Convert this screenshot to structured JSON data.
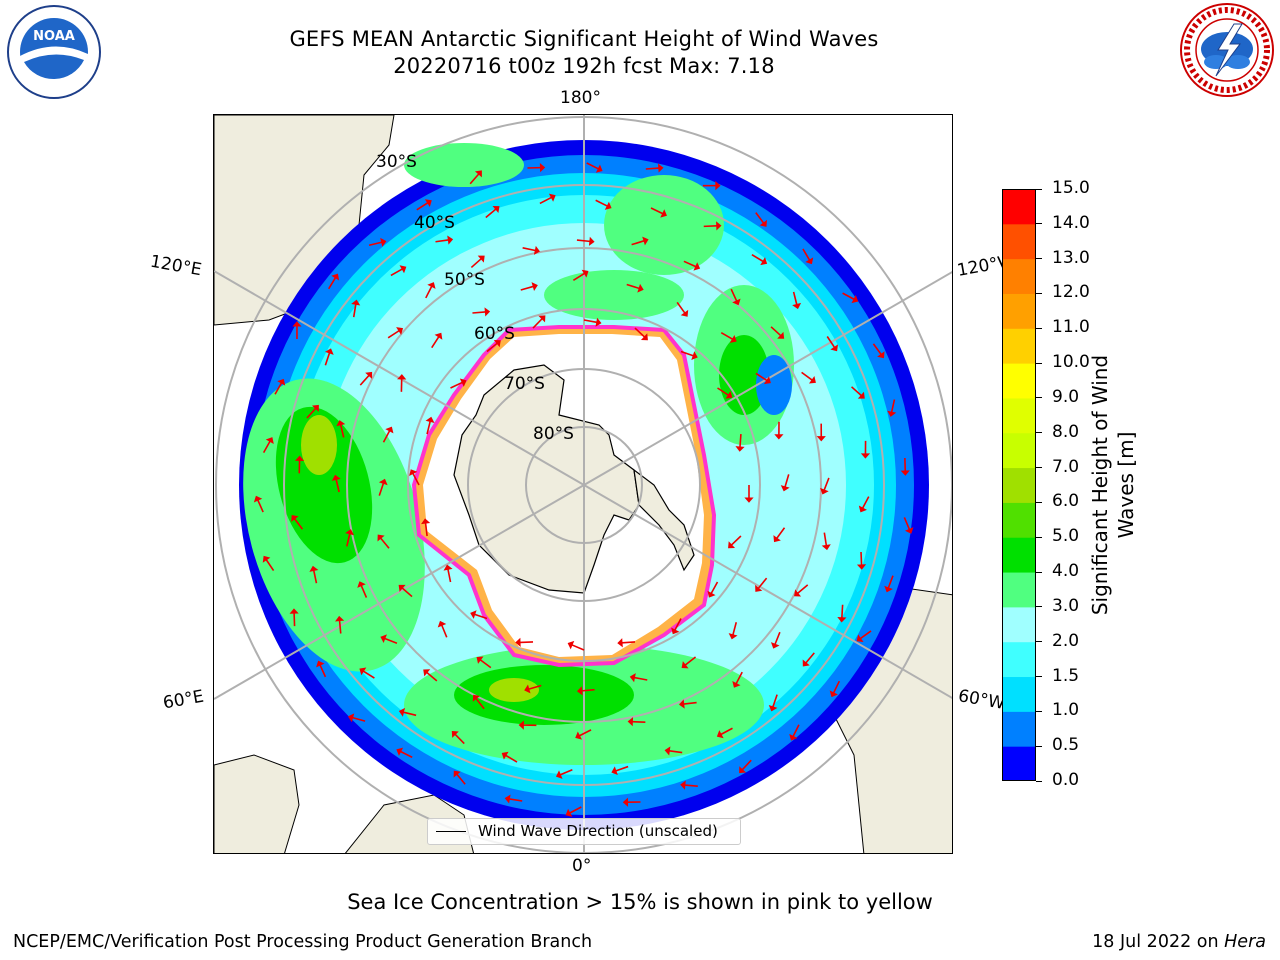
{
  "title": {
    "line1": "GEFS MEAN Antarctic Significant Height of Wind Waves",
    "line2": "20220716 t00z 192h fcst   Max: 7.18"
  },
  "subtitle": "Sea Ice Concentration > 15% is shown in pink to yellow",
  "footer": {
    "left": "NCEP/EMC/Verification Post Processing Product Generation Branch",
    "right_date": "18 Jul 2022 on ",
    "right_machine": "Hera"
  },
  "logos": {
    "noaa": "NOAA",
    "nws": "NATIONAL WEATHER SERVICE"
  },
  "map": {
    "projection": "south-polar-stereographic",
    "longitude_labels": {
      "top": "180°",
      "bottom": "0°",
      "left_upper": "120°E",
      "left_lower": "60°E",
      "right_upper": "120°W",
      "right_lower": "60°W"
    },
    "latitude_labels": [
      "30°S",
      "40°S",
      "50°S",
      "60°S",
      "70°S",
      "80°S"
    ],
    "legend": "Wind Wave Direction (unscaled)",
    "colors": {
      "land": "#efedde",
      "ice_edge": "#ff33cc",
      "ice_inner": "#ffb347",
      "arrow": "#ee0000",
      "grid": "#b0b0b0"
    }
  },
  "colorbar": {
    "label": "Significant Height of Wind Waves [m]",
    "ticks": [
      "0.0",
      "0.5",
      "1.0",
      "1.5",
      "2.0",
      "3.0",
      "4.0",
      "5.0",
      "6.0",
      "7.0",
      "8.0",
      "9.0",
      "10.0",
      "11.0",
      "12.0",
      "13.0",
      "14.0",
      "15.0"
    ],
    "colors": [
      "#0000ff",
      "#0080ff",
      "#00e0ff",
      "#40ffff",
      "#a0ffff",
      "#50ff80",
      "#00e000",
      "#50e000",
      "#a0e000",
      "#c8ff00",
      "#e0ff00",
      "#ffff00",
      "#ffd000",
      "#ffa000",
      "#ff8000",
      "#ff5000",
      "#ff0000"
    ]
  }
}
